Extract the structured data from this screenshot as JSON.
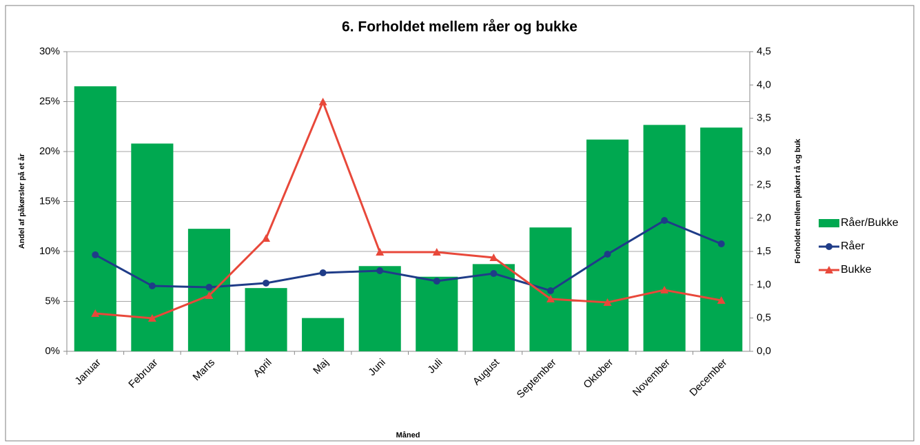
{
  "chart_data": {
    "type": "bar-line",
    "title": "6. Forholdet mellem råer og bukke",
    "y_label": "Andel af påkørsler på et år",
    "y2_label": "Forholdet mellem påkørt rå og buk",
    "x_label": "Måned",
    "categories": [
      "Januar",
      "Februar",
      "Marts",
      "April",
      "Maj",
      "Juni",
      "Juli",
      "August",
      "September",
      "Oktober",
      "November",
      "December"
    ],
    "ylim": [
      0,
      30
    ],
    "yticks": [
      {
        "value": 0,
        "label": "0%"
      },
      {
        "value": 5,
        "label": "5%"
      },
      {
        "value": 10,
        "label": "10%"
      },
      {
        "value": 15,
        "label": "15%"
      },
      {
        "value": 20,
        "label": "20%"
      },
      {
        "value": 25,
        "label": "25%"
      },
      {
        "value": 30,
        "label": "30%"
      }
    ],
    "y2lim": [
      0,
      4.5
    ],
    "y2ticks": [
      {
        "value": 0,
        "label": "0,0"
      },
      {
        "value": 0.5,
        "label": "0,5"
      },
      {
        "value": 1,
        "label": "1,0"
      },
      {
        "value": 1.5,
        "label": "1,5"
      },
      {
        "value": 2,
        "label": "2,0"
      },
      {
        "value": 2.5,
        "label": "2,5"
      },
      {
        "value": 3,
        "label": "3,0"
      },
      {
        "value": 3.5,
        "label": "3,5"
      },
      {
        "value": 4,
        "label": "4,0"
      },
      {
        "value": 4.5,
        "label": "4,5"
      }
    ],
    "grid": true,
    "legend": "right",
    "series": [
      {
        "name": "Råer/Bukke",
        "type": "bar",
        "axis": "y2",
        "color": "#00a850",
        "values": [
          3.98,
          3.12,
          1.84,
          0.95,
          0.5,
          1.28,
          1.12,
          1.31,
          1.86,
          3.18,
          3.4,
          3.36
        ]
      },
      {
        "name": "Råer",
        "type": "line",
        "marker": "circle",
        "color": "#1f3c88",
        "values": [
          9.66,
          6.55,
          6.41,
          6.83,
          7.86,
          8.07,
          7.03,
          7.79,
          6.07,
          9.72,
          13.1,
          10.76
        ]
      },
      {
        "name": "Bukke",
        "type": "line",
        "marker": "triangle",
        "color": "#e8483a",
        "values": [
          3.79,
          3.31,
          5.59,
          11.31,
          24.97,
          9.93,
          9.93,
          9.38,
          5.24,
          4.9,
          6.14,
          5.1
        ]
      }
    ]
  }
}
